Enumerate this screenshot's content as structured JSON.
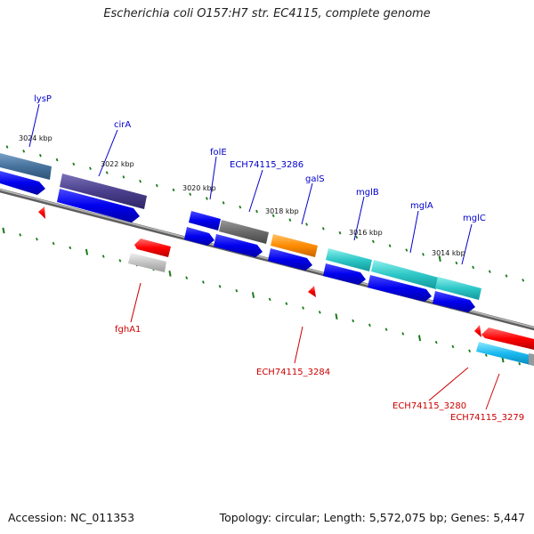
{
  "title": "Escherichia coli O157:H7 str. EC4115, complete genome",
  "footer": {
    "accession": "Accession: NC_011353",
    "summary": "Topology: circular; Length: 5,572,075 bp; Genes: 5,447"
  },
  "colors": {
    "forward_label": "#0000cc",
    "reverse_label": "#cc0000",
    "tick": "#1a7a1a",
    "backbone": "#8a8a8a"
  },
  "ticks": [
    "3024 kbp",
    "3022 kbp",
    "3020 kbp",
    "3018 kbp",
    "3016 kbp",
    "3014 kbp"
  ],
  "forward_genes": [
    "lysP",
    "cirA",
    "folE",
    "ECH74115_3286",
    "galS",
    "mglB",
    "mglA",
    "mglC"
  ],
  "reverse_genes": [
    "fghA1",
    "ECH74115_3284",
    "ECH74115_3280",
    "ECH74115_3279"
  ]
}
